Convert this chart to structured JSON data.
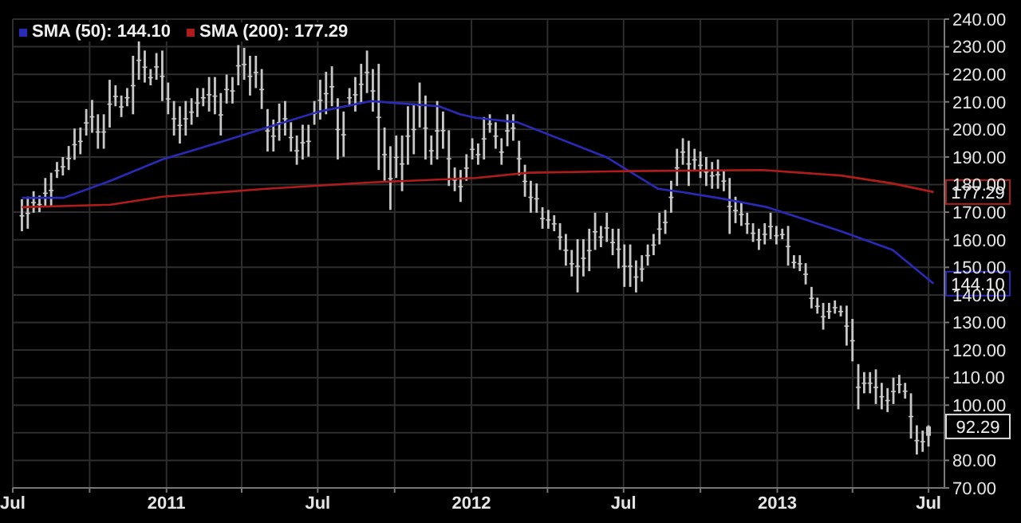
{
  "chart_data": {
    "type": "candlestick",
    "color": "#c8c8c8",
    "x": [
      "2010-07-12",
      "2010-07-19",
      "2010-07-26",
      "2010-08-02",
      "2010-08-09",
      "2010-08-16",
      "2010-08-23",
      "2010-08-30",
      "2010-09-06",
      "2010-09-13",
      "2010-09-20",
      "2010-09-27",
      "2010-10-04",
      "2010-10-11",
      "2010-10-18",
      "2010-10-25",
      "2010-11-01",
      "2010-11-08",
      "2010-11-15",
      "2010-11-22",
      "2010-11-29",
      "2010-12-06",
      "2010-12-13",
      "2010-12-20",
      "2010-12-27",
      "2011-01-03",
      "2011-01-10",
      "2011-01-17",
      "2011-01-24",
      "2011-01-31",
      "2011-02-07",
      "2011-02-14",
      "2011-02-21",
      "2011-02-28",
      "2011-03-07",
      "2011-03-14",
      "2011-03-21",
      "2011-03-28",
      "2011-04-04",
      "2011-04-11",
      "2011-04-18",
      "2011-04-25",
      "2011-05-02",
      "2011-05-09",
      "2011-05-16",
      "2011-05-23",
      "2011-05-30",
      "2011-06-06",
      "2011-06-13",
      "2011-06-20",
      "2011-06-27",
      "2011-07-04",
      "2011-07-11",
      "2011-07-18",
      "2011-07-25",
      "2011-08-01",
      "2011-08-08",
      "2011-08-15",
      "2011-08-22",
      "2011-08-29",
      "2011-09-05",
      "2011-09-12",
      "2011-09-19",
      "2011-09-26",
      "2011-10-03",
      "2011-10-10",
      "2011-10-17",
      "2011-10-24",
      "2011-10-31",
      "2011-11-07",
      "2011-11-14",
      "2011-11-21",
      "2011-11-28",
      "2011-12-05",
      "2011-12-12",
      "2011-12-19",
      "2011-12-26",
      "2012-01-02",
      "2012-01-09",
      "2012-01-16",
      "2012-01-23",
      "2012-01-30",
      "2012-02-06",
      "2012-02-13",
      "2012-02-20",
      "2012-02-27",
      "2012-03-05",
      "2012-03-12",
      "2012-03-19",
      "2012-03-26",
      "2012-04-02",
      "2012-04-09",
      "2012-04-16",
      "2012-04-23",
      "2012-04-30",
      "2012-05-07",
      "2012-05-14",
      "2012-05-21",
      "2012-05-28",
      "2012-06-04",
      "2012-06-11",
      "2012-06-18",
      "2012-06-25",
      "2012-07-02",
      "2012-07-09",
      "2012-07-16",
      "2012-07-23",
      "2012-07-30",
      "2012-08-06",
      "2012-08-13",
      "2012-08-20",
      "2012-08-27",
      "2012-09-03",
      "2012-09-10",
      "2012-09-17",
      "2012-09-24",
      "2012-10-01",
      "2012-10-08",
      "2012-10-15",
      "2012-10-22",
      "2012-10-29",
      "2012-11-05",
      "2012-11-12",
      "2012-11-19",
      "2012-11-26",
      "2012-12-03",
      "2012-12-10",
      "2012-12-17",
      "2012-12-24",
      "2012-12-31",
      "2013-01-07",
      "2013-01-14",
      "2013-01-21",
      "2013-01-28",
      "2013-02-04",
      "2013-02-11",
      "2013-02-18",
      "2013-02-25",
      "2013-03-04",
      "2013-03-11",
      "2013-03-18",
      "2013-03-25",
      "2013-04-01",
      "2013-04-08",
      "2013-04-15",
      "2013-04-22",
      "2013-04-29",
      "2013-05-06",
      "2013-05-13",
      "2013-05-20",
      "2013-05-27",
      "2013-06-03",
      "2013-06-10",
      "2013-06-17",
      "2013-06-24",
      "2013-07-01"
    ],
    "ohlc": [
      [
        168.9,
        174.7,
        163.1,
        168.9
      ],
      [
        169.8,
        175.6,
        164,
        169.8
      ],
      [
        173.7,
        177.6,
        169.8,
        173.7
      ],
      [
        173,
        176,
        170,
        173
      ],
      [
        177.1,
        182.4,
        171.8,
        177.1
      ],
      [
        178.1,
        184.3,
        171.8,
        178.1
      ],
      [
        185.3,
        188.2,
        182.4,
        185.3
      ],
      [
        186.7,
        190,
        183.3,
        186.7
      ],
      [
        189.7,
        194,
        185.3,
        189.7
      ],
      [
        194.7,
        200.3,
        189,
        194.7
      ],
      [
        195.9,
        200.7,
        191,
        195.9
      ],
      [
        202.6,
        207.4,
        197.8,
        202.6
      ],
      [
        204.8,
        210.7,
        198.8,
        204.8
      ],
      [
        199.3,
        205.5,
        193,
        199.3
      ],
      [
        199.3,
        205.5,
        193,
        199.3
      ],
      [
        209.4,
        218,
        200.7,
        209.4
      ],
      [
        212.2,
        216,
        208.4,
        212.2
      ],
      [
        208.4,
        212.3,
        204.5,
        208.4
      ],
      [
        211.7,
        215,
        208.4,
        211.7
      ],
      [
        216.1,
        226.7,
        205.5,
        216.1
      ],
      [
        225.3,
        232.5,
        218,
        225.3
      ],
      [
        222.8,
        228.6,
        217,
        222.8
      ],
      [
        219,
        221.9,
        216,
        219
      ],
      [
        222.9,
        227.7,
        218,
        222.9
      ],
      [
        219.5,
        228.6,
        210.3,
        219.5
      ],
      [
        211.3,
        217,
        205.5,
        211.3
      ],
      [
        204.1,
        210.3,
        197.8,
        204.1
      ],
      [
        201.7,
        208.4,
        194.9,
        201.7
      ],
      [
        204.1,
        210.3,
        197.8,
        204.1
      ],
      [
        206.5,
        211.3,
        201.7,
        206.5
      ],
      [
        209.8,
        215,
        204.5,
        209.8
      ],
      [
        211.7,
        215,
        208.4,
        211.7
      ],
      [
        212.8,
        219,
        206.5,
        212.8
      ],
      [
        212.3,
        219,
        205.5,
        212.3
      ],
      [
        205.5,
        213.2,
        197.8,
        205.5
      ],
      [
        214.7,
        219.9,
        209.4,
        214.7
      ],
      [
        214.2,
        219,
        209.4,
        214.2
      ],
      [
        223.3,
        230.6,
        216,
        223.3
      ],
      [
        223.8,
        229.6,
        218,
        223.8
      ],
      [
        219.5,
        226.7,
        212.3,
        219.5
      ],
      [
        220.9,
        226.7,
        215,
        220.9
      ],
      [
        214.7,
        221.9,
        207.4,
        214.7
      ],
      [
        199.7,
        207.4,
        192,
        199.7
      ],
      [
        197.8,
        203.6,
        192,
        197.8
      ],
      [
        202.7,
        209.4,
        195.9,
        202.7
      ],
      [
        204.1,
        210.3,
        197.8,
        204.1
      ],
      [
        197.3,
        202.6,
        192,
        197.3
      ],
      [
        192.5,
        197.8,
        187.2,
        192.5
      ],
      [
        195.4,
        201.7,
        189.1,
        195.4
      ],
      [
        195.9,
        201.7,
        190.1,
        195.9
      ],
      [
        206,
        210.3,
        201.7,
        206
      ],
      [
        210.8,
        218,
        203.6,
        210.8
      ],
      [
        213.2,
        220.9,
        205.5,
        213.2
      ],
      [
        215.7,
        222.9,
        208.4,
        215.7
      ],
      [
        200.2,
        211.3,
        189.1,
        200.2
      ],
      [
        198.3,
        206.5,
        190.1,
        198.3
      ],
      [
        211.7,
        215,
        208.4,
        211.7
      ],
      [
        212.8,
        219,
        206.5,
        212.8
      ],
      [
        216.6,
        223.8,
        209.4,
        216.6
      ],
      [
        220.9,
        228.6,
        213.2,
        220.9
      ],
      [
        214.2,
        221.9,
        206.5,
        214.2
      ],
      [
        204.6,
        223.8,
        185.3,
        204.6
      ],
      [
        191.1,
        200.7,
        181.4,
        191.1
      ],
      [
        182.4,
        193.9,
        170.8,
        182.4
      ],
      [
        190.1,
        197.8,
        182.4,
        190.1
      ],
      [
        187.7,
        197.8,
        177.6,
        187.7
      ],
      [
        197.8,
        208.4,
        187.2,
        197.8
      ],
      [
        200.2,
        209.4,
        191,
        200.2
      ],
      [
        208.9,
        217,
        200.7,
        208.9
      ],
      [
        200.7,
        212.3,
        189.1,
        200.7
      ],
      [
        192.5,
        197.8,
        187.2,
        192.5
      ],
      [
        199.7,
        210.3,
        189.1,
        199.7
      ],
      [
        199.8,
        206.5,
        193,
        199.8
      ],
      [
        189.6,
        199.7,
        179.5,
        189.6
      ],
      [
        181.9,
        186.2,
        177.6,
        181.9
      ],
      [
        179.5,
        185.3,
        173.7,
        179.5
      ],
      [
        186.2,
        191,
        181.4,
        186.2
      ],
      [
        193,
        196.8,
        189.1,
        193
      ],
      [
        191.1,
        194.9,
        187.2,
        191.1
      ],
      [
        196.8,
        204.5,
        189.1,
        196.8
      ],
      [
        202.2,
        205.5,
        198.8,
        202.2
      ],
      [
        197.8,
        202.6,
        193,
        197.8
      ],
      [
        192,
        196.8,
        187.2,
        192
      ],
      [
        199.7,
        205.5,
        193.9,
        199.7
      ],
      [
        200.7,
        205.5,
        195.9,
        200.7
      ],
      [
        189.6,
        195.9,
        183.3,
        189.6
      ],
      [
        181.4,
        187.2,
        175.6,
        181.4
      ],
      [
        175.6,
        181.4,
        169.8,
        175.6
      ],
      [
        175.1,
        180.4,
        169.8,
        175.1
      ],
      [
        167.9,
        171.8,
        164,
        167.9
      ],
      [
        167.4,
        170.8,
        164,
        167.4
      ],
      [
        166,
        168.9,
        163.1,
        166
      ],
      [
        161.2,
        166,
        156.3,
        161.2
      ],
      [
        156.4,
        162.1,
        150.6,
        156.4
      ],
      [
        151.5,
        156.3,
        146.7,
        151.5
      ],
      [
        150.6,
        160.2,
        140.9,
        150.6
      ],
      [
        153.5,
        160.2,
        146.7,
        153.5
      ],
      [
        156.3,
        164,
        148.6,
        156.3
      ],
      [
        163.1,
        169.8,
        156.3,
        163.1
      ],
      [
        161.2,
        165,
        157.3,
        161.2
      ],
      [
        164.5,
        169.8,
        159.2,
        164.5
      ],
      [
        159.2,
        164,
        154.4,
        159.2
      ],
      [
        156.8,
        164,
        149.6,
        156.8
      ],
      [
        150.6,
        158.3,
        142.9,
        150.6
      ],
      [
        150.6,
        158.3,
        142.9,
        150.6
      ],
      [
        146.7,
        152.5,
        140.9,
        146.7
      ],
      [
        149.6,
        154.4,
        144.8,
        149.6
      ],
      [
        154.5,
        158.3,
        150.6,
        154.5
      ],
      [
        158.3,
        162.1,
        154.4,
        158.3
      ],
      [
        164.1,
        169.8,
        158.3,
        164.1
      ],
      [
        166.5,
        170.8,
        162.1,
        166.5
      ],
      [
        175.6,
        181.4,
        169.8,
        175.6
      ],
      [
        186.3,
        193,
        179.5,
        186.3
      ],
      [
        192,
        196.8,
        187.2,
        192
      ],
      [
        187.7,
        195.9,
        179.5,
        187.7
      ],
      [
        189.2,
        193,
        185.3,
        189.2
      ],
      [
        187.2,
        192,
        182.4,
        187.2
      ],
      [
        184.8,
        190,
        179.5,
        184.8
      ],
      [
        183.4,
        188.2,
        178.5,
        183.4
      ],
      [
        183.8,
        189.1,
        178.5,
        183.8
      ],
      [
        181.5,
        185.3,
        177.6,
        181.5
      ],
      [
        172.3,
        182.4,
        162.1,
        172.3
      ],
      [
        170.8,
        175.6,
        166,
        170.8
      ],
      [
        169.4,
        173.7,
        165,
        169.4
      ],
      [
        166,
        169.8,
        162.1,
        166
      ],
      [
        162.6,
        166,
        159.2,
        162.6
      ],
      [
        160.2,
        164,
        156.3,
        160.2
      ],
      [
        162.2,
        166,
        158.3,
        162.2
      ],
      [
        165,
        169.8,
        160.2,
        165
      ],
      [
        161.7,
        165,
        158.3,
        161.7
      ],
      [
        162.1,
        164,
        160.2,
        162.1
      ],
      [
        157.8,
        165,
        150.6,
        157.8
      ],
      [
        152,
        154.4,
        149.6,
        152
      ],
      [
        151.5,
        154.4,
        148.6,
        151.5
      ],
      [
        147.7,
        151.5,
        143.8,
        147.7
      ],
      [
        139,
        142.9,
        135.1,
        139
      ],
      [
        136.1,
        139,
        133.2,
        136.1
      ],
      [
        132.3,
        137.1,
        127.4,
        132.3
      ],
      [
        134.2,
        137.1,
        131.3,
        134.2
      ],
      [
        135.6,
        138,
        133.2,
        135.6
      ],
      [
        134.2,
        136.1,
        132.2,
        134.2
      ],
      [
        128.9,
        136.1,
        121.6,
        128.9
      ],
      [
        123.6,
        131.3,
        115.9,
        123.6
      ],
      [
        106.7,
        114.9,
        98.5,
        106.7
      ],
      [
        108.2,
        112,
        104.3,
        108.2
      ],
      [
        108.2,
        112,
        104.3,
        108.2
      ],
      [
        106.7,
        113,
        100.4,
        106.7
      ],
      [
        103.3,
        108.1,
        98.5,
        103.3
      ],
      [
        101.9,
        106.2,
        97.5,
        101.9
      ],
      [
        105.2,
        110,
        100.4,
        105.2
      ],
      [
        107.7,
        111,
        104.3,
        107.7
      ],
      [
        105.3,
        108.1,
        102.4,
        105.3
      ],
      [
        96.1,
        104.3,
        87.9,
        96.1
      ],
      [
        87.4,
        92.7,
        82.1,
        87.4
      ],
      [
        87,
        90.8,
        83.1,
        87
      ],
      [
        88.9,
        92.7,
        85,
        92.29
      ]
    ],
    "series": [
      {
        "type": "line",
        "name": "SMA (50): 144.10",
        "color": "#2a2ab8",
        "x": [
          "2010-07-12",
          "2010-08-31",
          "2010-10-26",
          "2010-12-27",
          "2011-03-12",
          "2011-05-01",
          "2011-07-03",
          "2011-09-03",
          "2011-10-10",
          "2011-11-23",
          "2011-12-18",
          "2012-01-06",
          "2012-02-25",
          "2012-06-10",
          "2012-08-11",
          "2012-09-11",
          "2012-10-31",
          "2012-12-20",
          "2013-03-18",
          "2013-05-19",
          "2013-07-07"
        ],
        "values": [
          175.2,
          175.2,
          181.4,
          189.1,
          195.9,
          200.7,
          206.5,
          210.3,
          209.4,
          208.4,
          205.5,
          204.2,
          202.6,
          190,
          178.5,
          177.2,
          174.7,
          171.8,
          163.1,
          156.3,
          144.1
        ]
      },
      {
        "type": "line",
        "name": "SMA (200): 177.29",
        "color": "#b01c1c",
        "x": [
          "2010-07-12",
          "2010-10-26",
          "2010-12-27",
          "2011-05-01",
          "2011-09-03",
          "2012-01-06",
          "2012-03-09",
          "2012-07-11",
          "2012-12-14",
          "2013-03-18",
          "2013-05-19",
          "2013-07-07"
        ],
        "values": [
          171.8,
          172.7,
          175.6,
          178.5,
          180.8,
          182.4,
          184.3,
          184.9,
          185.3,
          183.3,
          180.4,
          177.3
        ]
      }
    ],
    "xlim": [
      "2010-07-01",
      "2013-07-20"
    ],
    "xticks": [
      {
        "value": "2010-07-01",
        "label": "Jul"
      },
      {
        "value": "2010-10-01",
        "label": null
      },
      {
        "value": "2011-01-01",
        "label": "2011"
      },
      {
        "value": "2011-04-01",
        "label": null
      },
      {
        "value": "2011-07-01",
        "label": "Jul"
      },
      {
        "value": "2011-10-01",
        "label": null
      },
      {
        "value": "2012-01-01",
        "label": "2012"
      },
      {
        "value": "2012-04-01",
        "label": null
      },
      {
        "value": "2012-07-01",
        "label": "Jul"
      },
      {
        "value": "2012-10-01",
        "label": null
      },
      {
        "value": "2013-01-01",
        "label": "2013"
      },
      {
        "value": "2013-04-01",
        "label": null
      },
      {
        "value": "2013-07-01",
        "label": "Jul"
      }
    ],
    "ylim": [
      70,
      240
    ],
    "yticks": [
      {
        "value": 70,
        "label": "70.00"
      },
      {
        "value": 80,
        "label": "80.00"
      },
      {
        "value": 90,
        "label": null
      },
      {
        "value": 100,
        "label": "100.00"
      },
      {
        "value": 110,
        "label": "110.00"
      },
      {
        "value": 120,
        "label": "120.00"
      },
      {
        "value": 130,
        "label": "130.00"
      },
      {
        "value": 140,
        "label": "140.00"
      },
      {
        "value": 150,
        "label": "150.00"
      },
      {
        "value": 160,
        "label": "160.00"
      },
      {
        "value": 170,
        "label": "170.00"
      },
      {
        "value": 180,
        "label": "180.00"
      },
      {
        "value": 190,
        "label": "190.00"
      },
      {
        "value": 200,
        "label": "200.00"
      },
      {
        "value": 210,
        "label": "210.00"
      },
      {
        "value": 220,
        "label": "220.00"
      },
      {
        "value": 230,
        "label": "230.00"
      },
      {
        "value": 240,
        "label": "240.00"
      }
    ],
    "annotations": [
      {
        "text": "177.29",
        "x": "2013-07-07",
        "y": 177.3
      },
      {
        "text": "144.10",
        "x": "2013-07-07",
        "y": 144.1
      },
      "92.29"
    ],
    "grid": true,
    "legend": "top left",
    "marker": "none"
  }
}
